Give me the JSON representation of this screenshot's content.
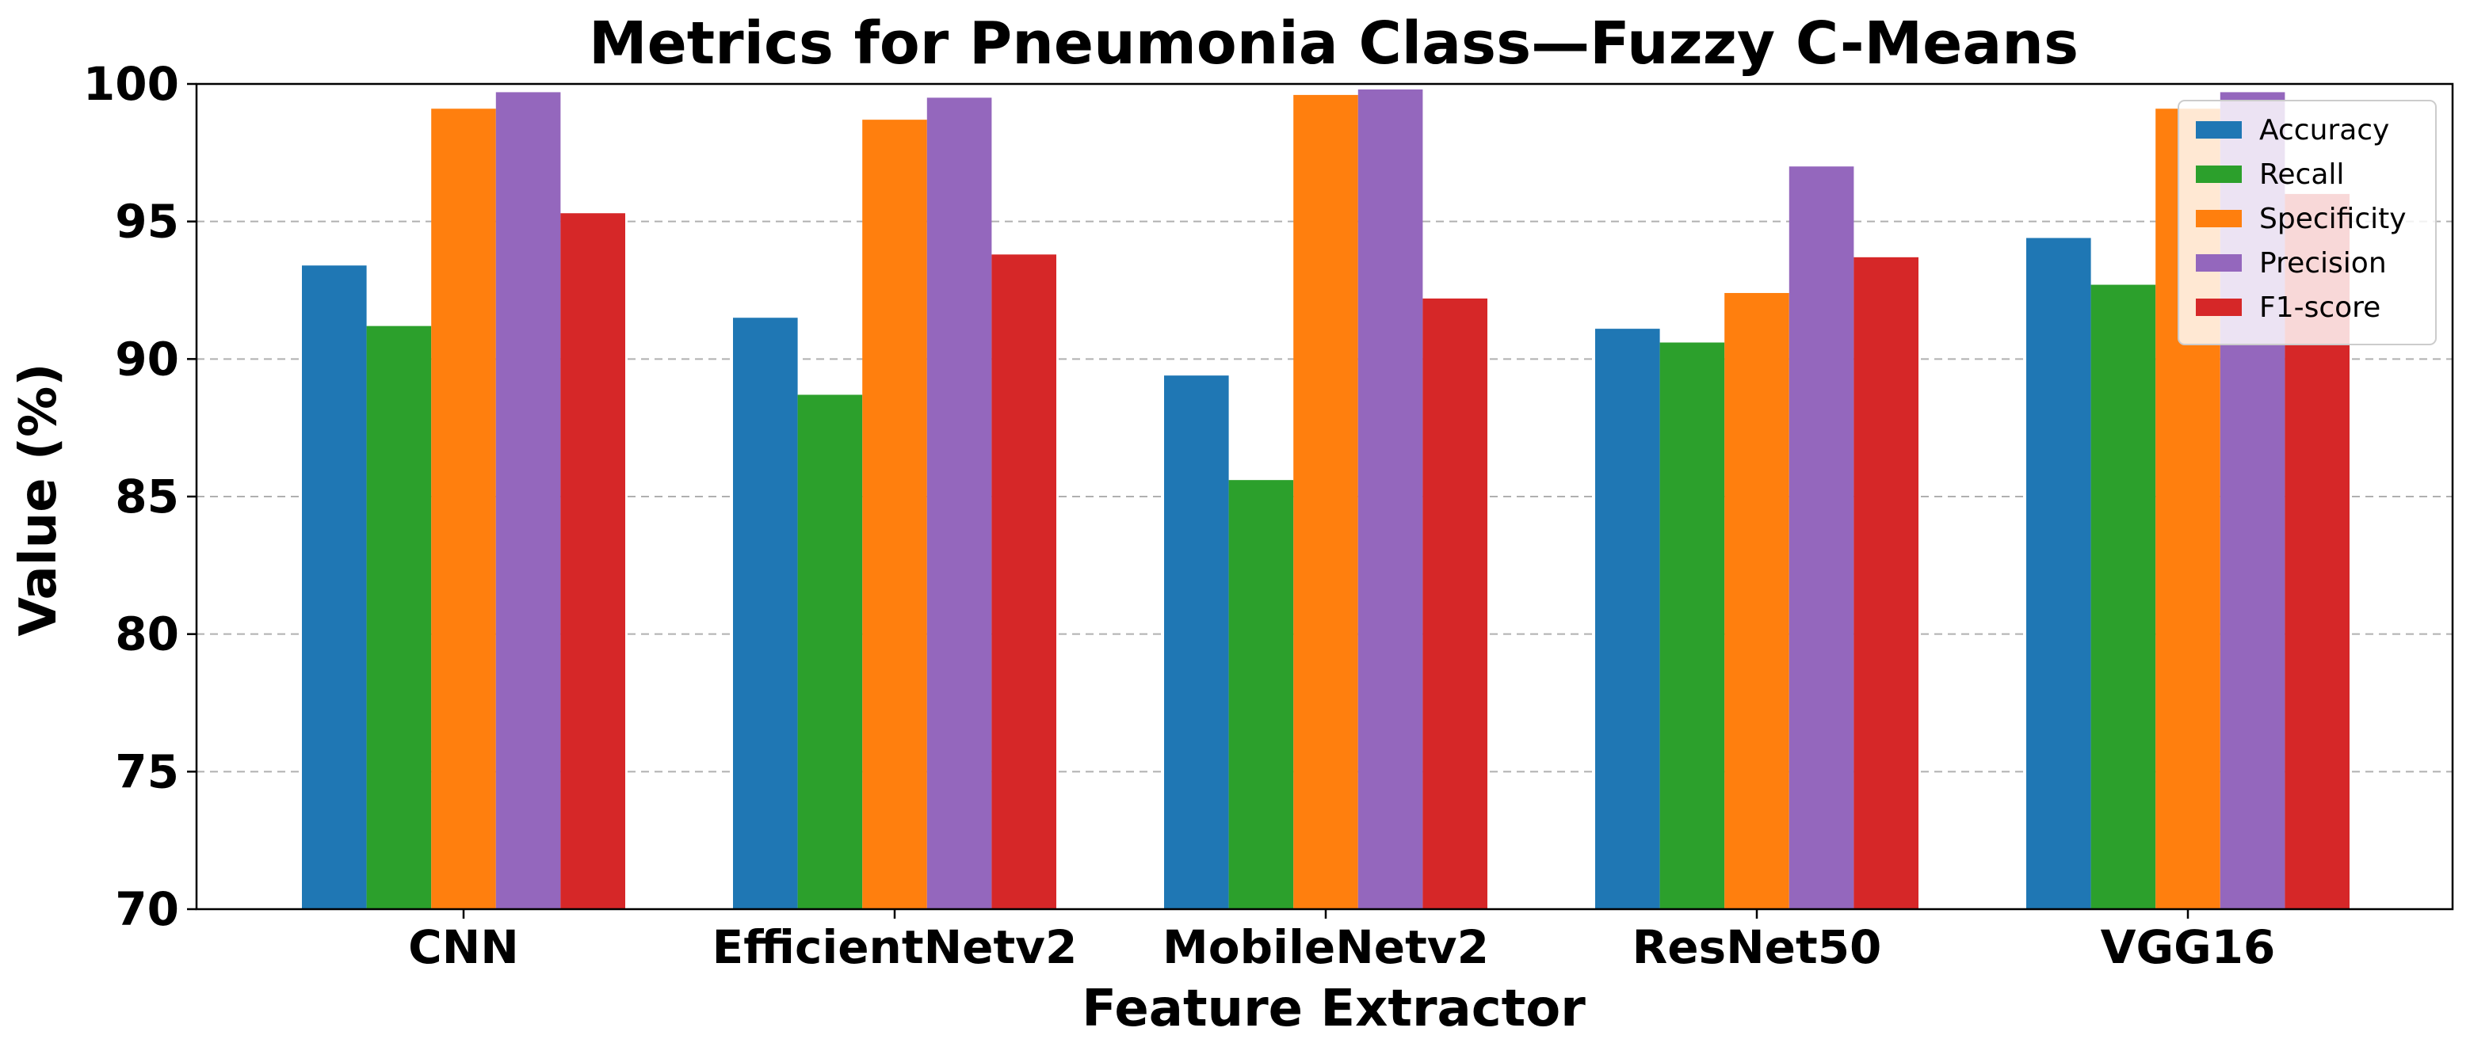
{
  "chart_data": {
    "type": "bar",
    "title": "Metrics for Pneumonia Class—Fuzzy C-Means",
    "xlabel": "Feature Extractor",
    "ylabel": "Value (%)",
    "ylim": [
      70,
      100
    ],
    "yticks": [
      "70",
      "75",
      "80",
      "85",
      "90",
      "95",
      "100"
    ],
    "grid": "y-dashed",
    "legend_position": "top-right",
    "categories": [
      "CNN",
      "EfficientNetv2",
      "MobileNetv2",
      "ResNet50",
      "VGG16"
    ],
    "series": [
      {
        "name": "Accuracy",
        "color": "#1f77b4",
        "values": [
          93.4,
          91.5,
          89.4,
          91.1,
          94.4
        ]
      },
      {
        "name": "Recall",
        "color": "#2ca02c",
        "values": [
          91.2,
          88.7,
          85.6,
          90.6,
          92.7
        ]
      },
      {
        "name": "Specificity",
        "color": "#ff7f0e",
        "values": [
          99.1,
          98.7,
          99.6,
          92.4,
          99.1
        ]
      },
      {
        "name": "Precision",
        "color": "#9467bd",
        "values": [
          99.7,
          99.5,
          99.8,
          97.0,
          99.7
        ]
      },
      {
        "name": "F1-score",
        "color": "#d62728",
        "values": [
          95.3,
          93.8,
          92.2,
          93.7,
          96.0
        ]
      }
    ]
  }
}
